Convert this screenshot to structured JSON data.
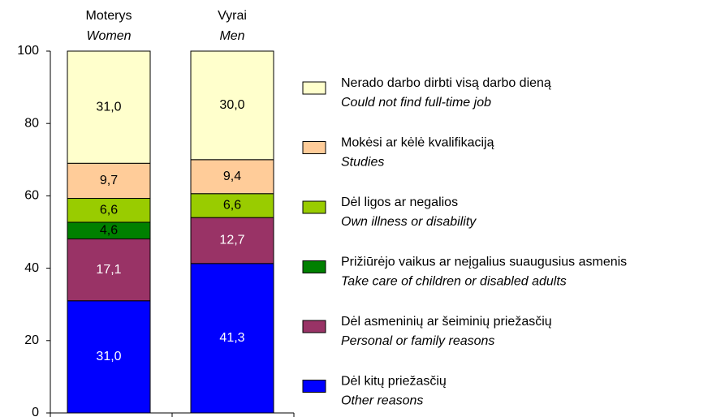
{
  "chart_data": {
    "type": "stacked_bar",
    "categories": [
      "Moterys",
      "Vyrai"
    ],
    "category_subtitles": [
      "Women",
      "Men"
    ],
    "ylim": [
      0,
      100
    ],
    "yticks": [
      0,
      20,
      40,
      60,
      80,
      100
    ],
    "series": [
      {
        "name": "Dėl kitų priežasčių",
        "subtitle": "Other reasons",
        "color": "#0000ff",
        "label_color": "#ffffff",
        "values": [
          31.0,
          41.3
        ],
        "value_labels": [
          "31,0",
          "41,3"
        ]
      },
      {
        "name": "Dėl asmeninių ar šeiminių priežasčių",
        "subtitle": "Personal or family reasons",
        "color": "#993366",
        "label_color": "#ffffff",
        "values": [
          17.1,
          12.7
        ],
        "value_labels": [
          "17,1",
          "12,7"
        ]
      },
      {
        "name": "Prižiūrėjo vaikus ar neįgalius suaugusius asmenis",
        "subtitle": "Take care of children or disabled adults",
        "color": "#008000",
        "label_color": "#000000",
        "values": [
          4.6,
          null
        ],
        "value_labels": [
          "4,6",
          null
        ]
      },
      {
        "name": "Dėl ligos ar negalios",
        "subtitle": "Own illness or disability",
        "color": "#99cc00",
        "label_color": "#000000",
        "values": [
          6.6,
          6.6
        ],
        "value_labels": [
          "6,6",
          "6,6"
        ]
      },
      {
        "name": "Mokėsi ar kėlė kvalifikaciją",
        "subtitle": "Studies",
        "color": "#ffcc99",
        "label_color": "#000000",
        "values": [
          9.7,
          9.4
        ],
        "value_labels": [
          "9,7",
          "9,4"
        ]
      },
      {
        "name": "Nerado darbo dirbti visą darbo dieną",
        "subtitle": "Could not find full-time job",
        "color": "#ffffcc",
        "label_color": "#000000",
        "values": [
          31.0,
          30.0
        ],
        "value_labels": [
          "31,0",
          "30,0"
        ]
      }
    ]
  }
}
